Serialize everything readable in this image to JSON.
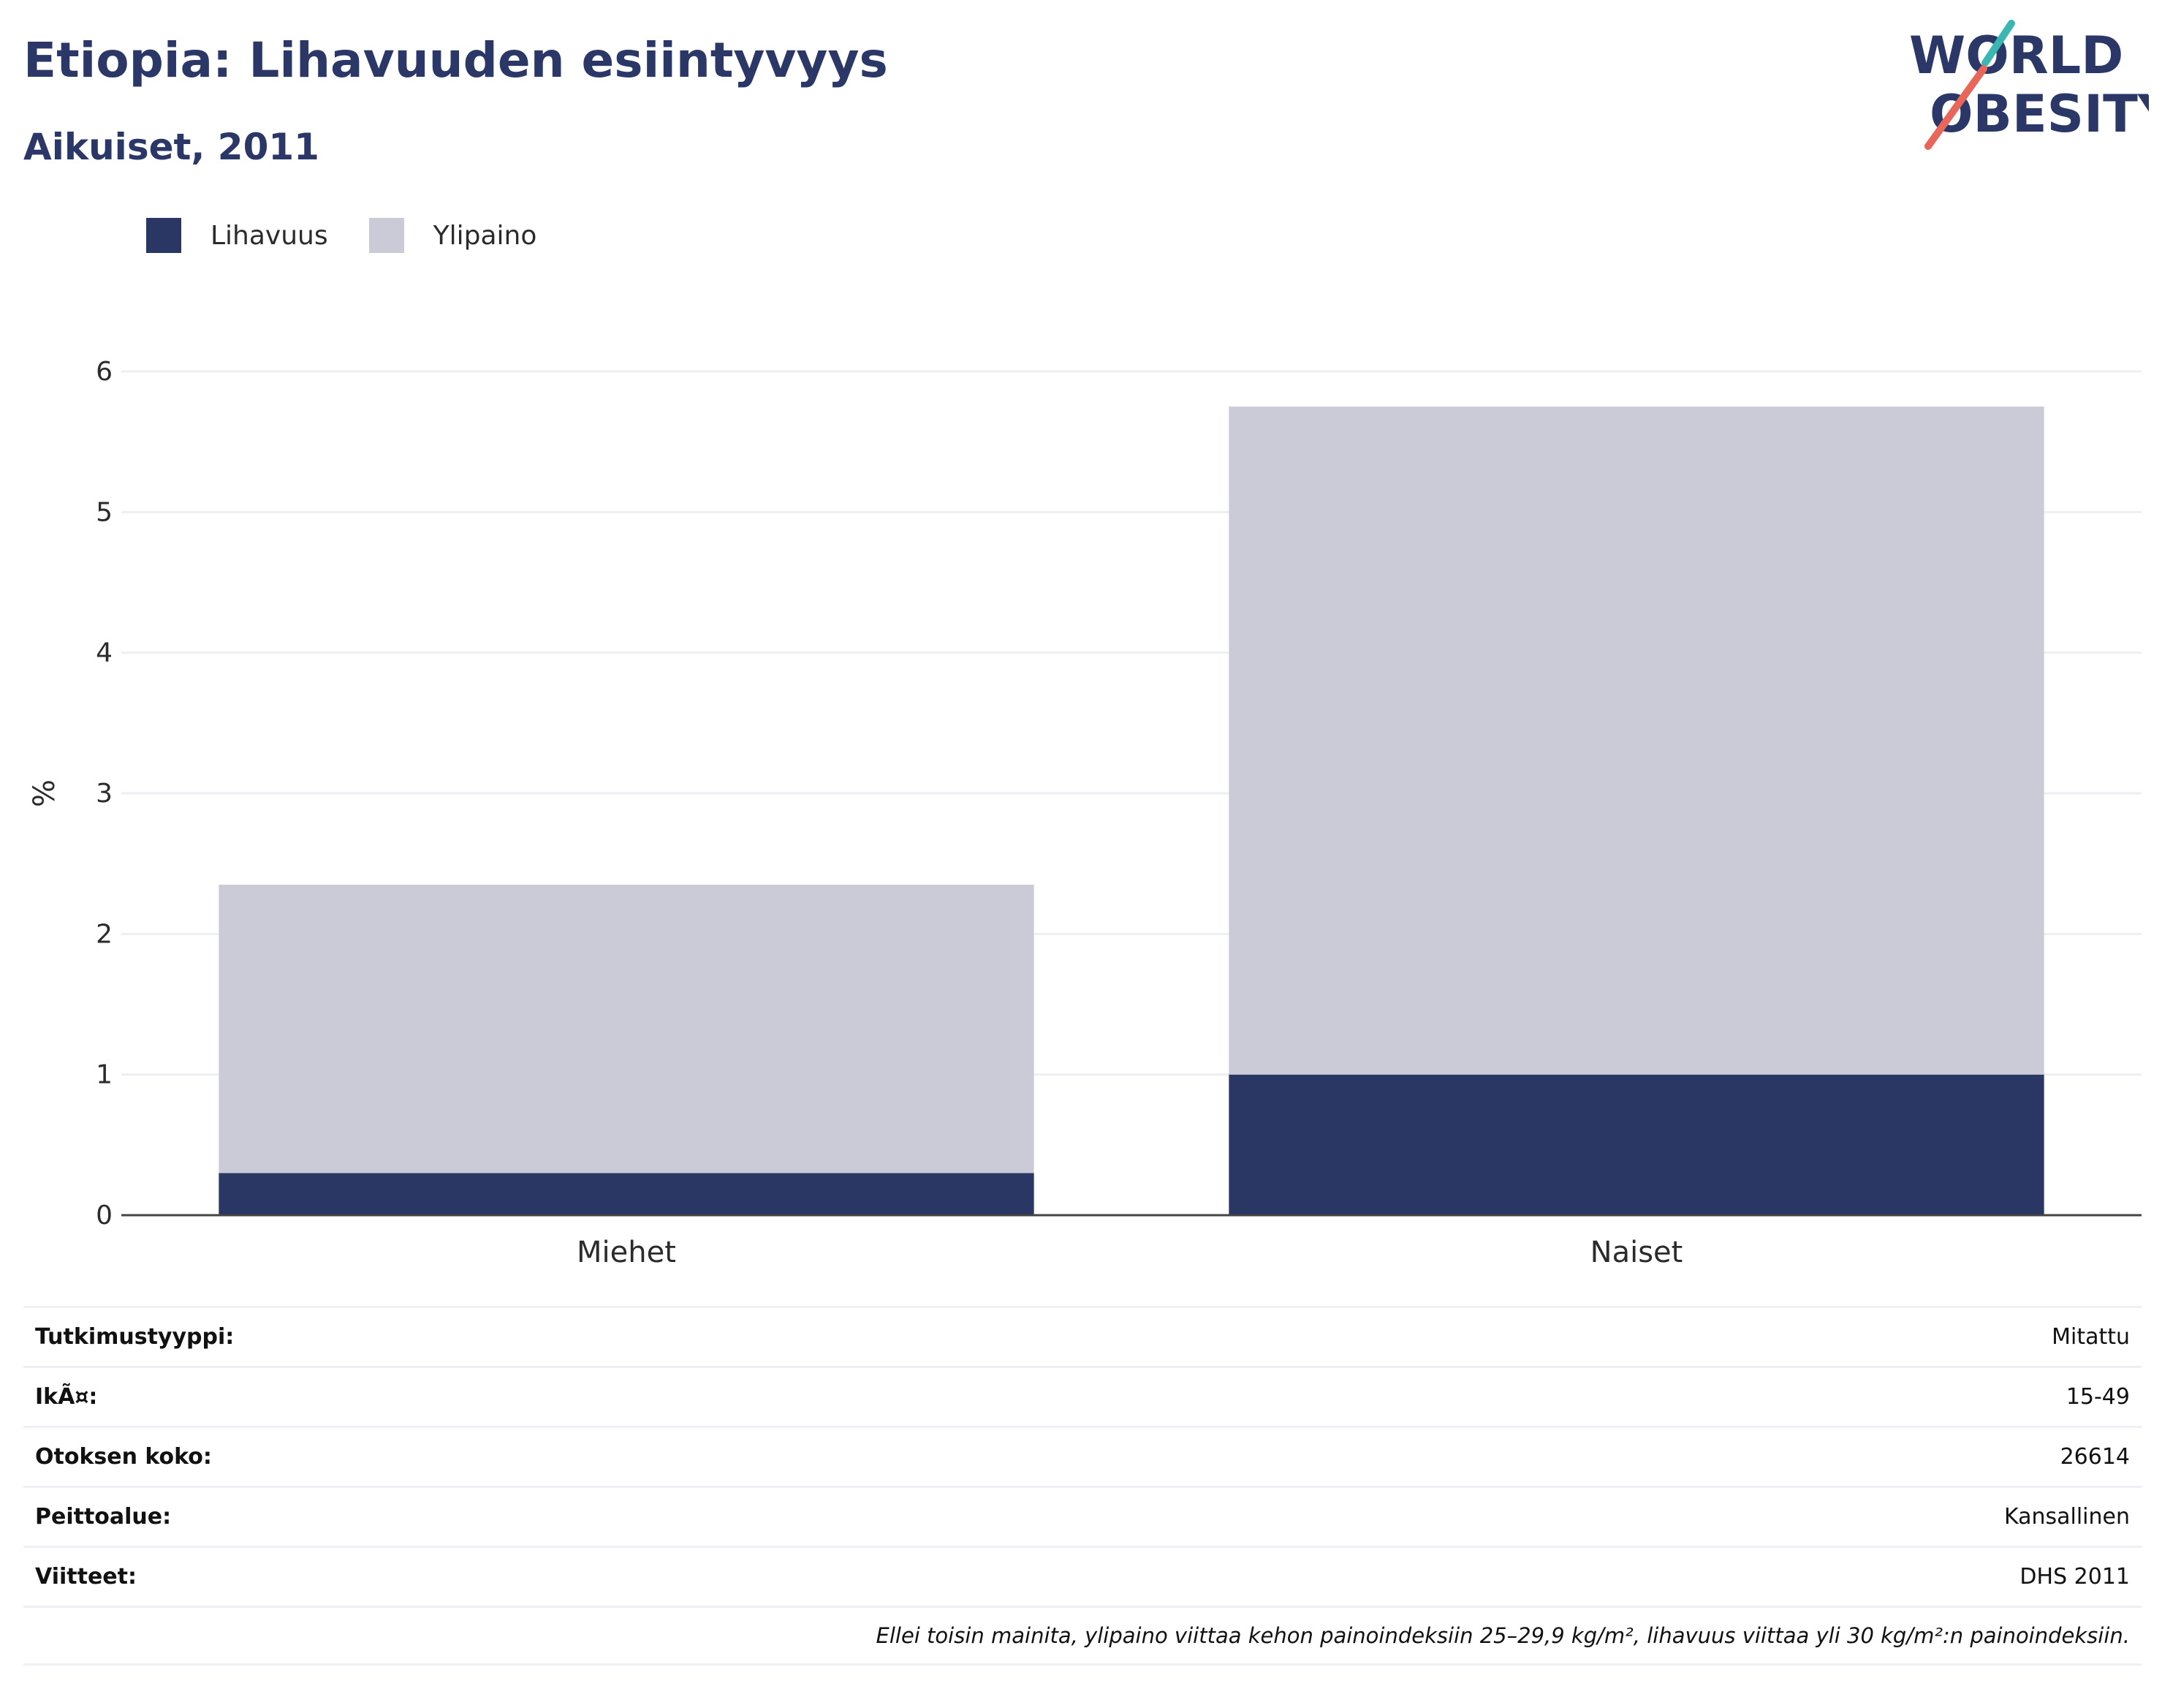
{
  "header": {
    "title": "Etiopia: Lihavuuden esiintyvyys",
    "subtitle": "Aikuiset, 2011"
  },
  "logo": {
    "line1": "WORLD",
    "line2": "OBESITY",
    "colors": {
      "text": "#2b3766",
      "slash_top": "#3ab7b0",
      "slash_bottom": "#e8675a"
    }
  },
  "legend": [
    {
      "label": "Lihavuus",
      "color": "#2a3663"
    },
    {
      "label": "Ylipaino",
      "color": "#cacbd6"
    }
  ],
  "chart_data": {
    "type": "bar",
    "stacked": true,
    "categories": [
      "Miehet",
      "Naiset"
    ],
    "series": [
      {
        "name": "Lihavuus",
        "color": "#2a3663",
        "values": [
          0.3,
          1.0
        ]
      },
      {
        "name": "Ylipaino",
        "color": "#cacbd6",
        "values": [
          2.05,
          4.75
        ]
      }
    ],
    "ylabel": "%",
    "ylim": [
      0,
      6
    ],
    "yticks": [
      0,
      1,
      2,
      3,
      4,
      5,
      6
    ],
    "grid": true,
    "legend_position": "top-left"
  },
  "meta": {
    "rows": [
      {
        "label": "Tutkimustyyppi:",
        "value": "Mitattu"
      },
      {
        "label": "IkÃ¤:",
        "value": "15-49"
      },
      {
        "label": "Otoksen koko:",
        "value": "26614"
      },
      {
        "label": "Peittoalue:",
        "value": "Kansallinen"
      },
      {
        "label": "Viitteet:",
        "value": "DHS 2011"
      }
    ],
    "note": "Ellei toisin mainita, ylipaino viittaa kehon painoindeksiin 25–29,9 kg/m², lihavuus viittaa yli 30 kg/m²:n painoindeksiin."
  }
}
